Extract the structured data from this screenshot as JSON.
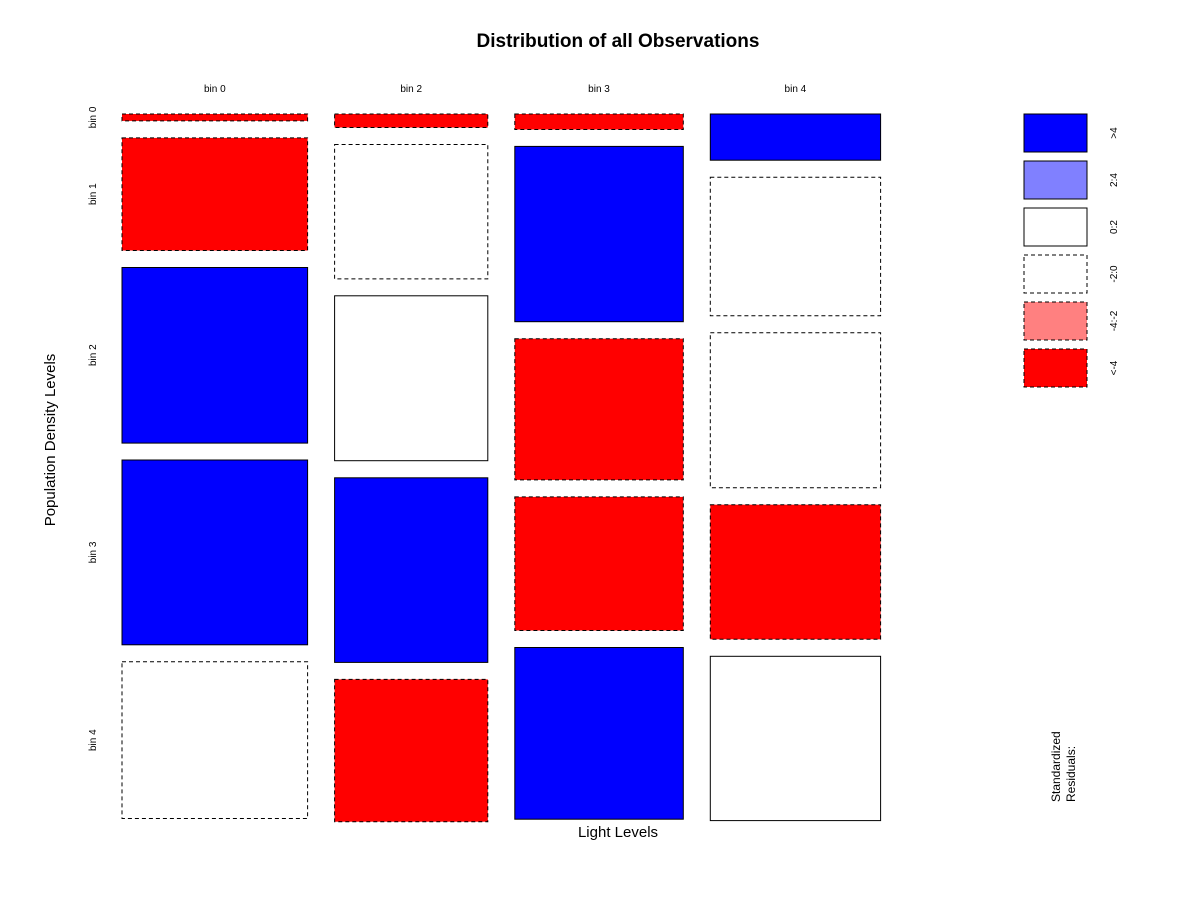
{
  "chart_data": {
    "type": "mosaic",
    "title": "Distribution of all Observations",
    "xlabel": "Light Levels",
    "ylabel": "Population Density Levels",
    "columns": [
      "bin 0",
      "bin 2",
      "bin 3",
      "bin 4"
    ],
    "rows": [
      "bin 0",
      "bin 1",
      "bin 2",
      "bin 3",
      "bin 4"
    ],
    "column_shares": [
      0.2535,
      0.2093,
      0.2302,
      0.2326
    ],
    "cells": [
      [
        {
          "share": 0.0111,
          "residual_class": "<-4"
        },
        {
          "share": 0.1822,
          "residual_class": "<-4"
        },
        {
          "share": 0.2841,
          "residual_class": ">4"
        },
        {
          "share": 0.299,
          "residual_class": ">4"
        },
        {
          "share": 0.2536,
          "residual_class": "-2:0"
        }
      ],
      [
        {
          "share": 0.0218,
          "residual_class": "<-4"
        },
        {
          "share": 0.2174,
          "residual_class": "-2:0"
        },
        {
          "share": 0.2669,
          "residual_class": "0:2"
        },
        {
          "share": 0.2987,
          "residual_class": ">4"
        },
        {
          "share": 0.2302,
          "residual_class": "<-4"
        }
      ],
      [
        {
          "share": 0.025,
          "residual_class": "<-4"
        },
        {
          "share": 0.2836,
          "residual_class": ">4"
        },
        {
          "share": 0.2285,
          "residual_class": "<-4"
        },
        {
          "share": 0.2162,
          "residual_class": "<-4"
        },
        {
          "share": 0.2778,
          "residual_class": ">4"
        }
      ],
      [
        {
          "share": 0.0748,
          "residual_class": ">4"
        },
        {
          "share": 0.2241,
          "residual_class": "-2:0"
        },
        {
          "share": 0.2508,
          "residual_class": "-2:0"
        },
        {
          "share": 0.2178,
          "residual_class": "<-4"
        },
        {
          "share": 0.2658,
          "residual_class": "0:2"
        }
      ]
    ],
    "legend": {
      "title_lines": [
        "Standardized",
        "Residuals:"
      ],
      "items": [
        {
          "label": ">4",
          "fill": "#0000ff",
          "dashed": false
        },
        {
          "label": "2:4",
          "fill": "#8080ff",
          "dashed": false
        },
        {
          "label": "0:2",
          "fill": "#ffffff",
          "dashed": false
        },
        {
          "label": "-2:0",
          "fill": "#ffffff",
          "dashed": true
        },
        {
          "label": "-4:-2",
          "fill": "#ff8080",
          "dashed": true
        },
        {
          "label": "<-4",
          "fill": "#ff0000",
          "dashed": true
        }
      ]
    }
  }
}
